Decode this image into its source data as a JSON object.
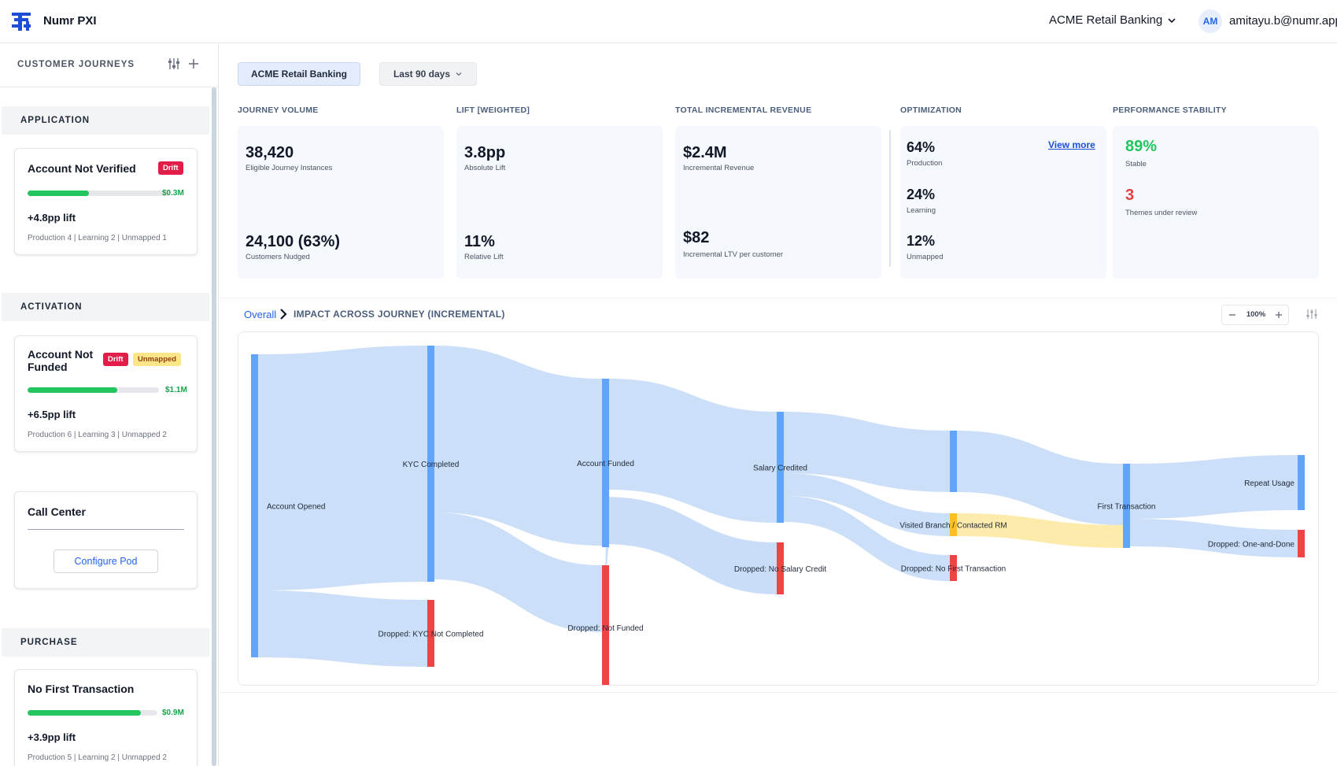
{
  "app": {
    "title": "Numr PXI",
    "org": "ACME Retail Banking"
  },
  "user": {
    "initials": "AM",
    "email": "amitayu.b@numr.app"
  },
  "sidebar": {
    "title": "CUSTOMER JOURNEYS",
    "sections": [
      {
        "label": "APPLICATION"
      },
      {
        "label": "ACTIVATION"
      },
      {
        "label": "PURCHASE"
      }
    ],
    "cards": [
      {
        "title": "Account Not Verified",
        "badges": [
          "Drift"
        ],
        "progress": 0.43,
        "value": "$0.3M",
        "lift": "+4.8pp lift",
        "meta": "Production 4 | Learning 2 | Unmapped 1"
      },
      {
        "title": "Account Not Funded",
        "badges": [
          "Drift",
          "Unmapped"
        ],
        "progress": 0.68,
        "value": "$1.1M",
        "lift": "+6.5pp lift",
        "meta": "Production 6 | Learning 3 | Unmapped 2"
      },
      {
        "title": "Call Center",
        "button": "Configure Pod"
      },
      {
        "title": "No First Transaction",
        "badges": [],
        "progress": 0.87,
        "value": "$0.9M",
        "lift": "+3.9pp lift",
        "meta": "Production 5 | Learning 2 | Unmapped 2"
      }
    ]
  },
  "filters": {
    "org": "ACME Retail Banking",
    "range": "Last 90 days"
  },
  "kpis": {
    "volume": {
      "label": "JOURNEY VOLUME",
      "v1": "38,420",
      "s1": "Eligible Journey Instances",
      "v2": "24,100 (63%)",
      "s2": "Customers Nudged"
    },
    "lift": {
      "label": "LIFT [WEIGHTED]",
      "v1": "3.8pp",
      "s1": "Absolute Lift",
      "v2": "11%",
      "s2": "Relative Lift"
    },
    "revenue": {
      "label": "TOTAL INCREMENTAL REVENUE",
      "v1": "$2.4M",
      "s1": "Incremental Revenue",
      "v2": "$82",
      "s2": "Incremental LTV per customer"
    },
    "optimization": {
      "label": "OPTIMIZATION",
      "link": "View more",
      "v1": "64%",
      "s1": "Production",
      "v2": "24%",
      "s2": "Learning",
      "v3": "12%",
      "s3": "Unmapped"
    },
    "stability": {
      "label": "PERFORMANCE STABILITY",
      "v1": "89%",
      "s1": "Stable",
      "v2": "3",
      "s2": "Themes under review",
      "good_color": "#22c55e",
      "bad_color": "#e53e3e"
    }
  },
  "chart_header": {
    "crumb": "Overall",
    "title": "IMPACT ACROSS JOURNEY (INCREMENTAL)",
    "zoom": "100%"
  },
  "chart_data": {
    "type": "sankey",
    "colors": {
      "node": "#60a5fa",
      "drop": "#ef4444",
      "branch": "#fbbf24",
      "link": "#c9ddf8",
      "branch_link": "#fdeaa8"
    },
    "nodes": [
      {
        "id": "opened",
        "label": "Account Opened",
        "kind": "node"
      },
      {
        "id": "kyc",
        "label": "KYC Completed",
        "kind": "node"
      },
      {
        "id": "drop_kyc",
        "label": "Dropped: KYC Not Completed",
        "kind": "drop"
      },
      {
        "id": "funded",
        "label": "Account Funded",
        "kind": "node"
      },
      {
        "id": "drop_funded",
        "label": "Dropped: Not Funded",
        "kind": "drop"
      },
      {
        "id": "salary",
        "label": "Salary Credited",
        "kind": "node"
      },
      {
        "id": "drop_salary",
        "label": "Dropped: No Salary Credit",
        "kind": "drop"
      },
      {
        "id": "mid",
        "label": "",
        "kind": "node"
      },
      {
        "id": "branch",
        "label": "Visited Branch / Contacted RM",
        "kind": "branch"
      },
      {
        "id": "drop_first",
        "label": "Dropped: No First Transaction",
        "kind": "drop"
      },
      {
        "id": "first",
        "label": "First Transaction",
        "kind": "node"
      },
      {
        "id": "repeat",
        "label": "Repeat Usage",
        "kind": "node"
      },
      {
        "id": "drop_one",
        "label": "Dropped: One-and-Done",
        "kind": "drop"
      }
    ],
    "links": [
      {
        "source": "opened",
        "target": "kyc",
        "value": 300
      },
      {
        "source": "opened",
        "target": "drop_kyc",
        "value": 85
      },
      {
        "source": "kyc",
        "target": "funded",
        "value": 212
      },
      {
        "source": "kyc",
        "target": "drop_funded",
        "value": 85
      },
      {
        "source": "funded",
        "target": "salary",
        "value": 141
      },
      {
        "source": "funded",
        "target": "drop_funded",
        "value": 73
      },
      {
        "source": "salary",
        "target": "mid",
        "value": 78
      },
      {
        "source": "salary",
        "target": "branch",
        "value": 29
      },
      {
        "source": "salary",
        "target": "drop_first",
        "value": 33
      },
      {
        "source": "mid",
        "target": "first",
        "value": 78
      },
      {
        "source": "branch",
        "target": "first",
        "value": 29
      },
      {
        "source": "first",
        "target": "repeat",
        "value": 70
      },
      {
        "source": "first",
        "target": "drop_one",
        "value": 35
      }
    ]
  }
}
